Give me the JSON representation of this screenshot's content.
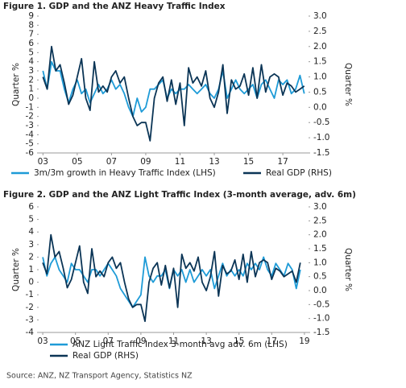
{
  "chart_data": [
    {
      "type": "line",
      "title": "Figure 1. GDP and the ANZ Heavy Traffic Index",
      "ylabel": "Quarter %",
      "y2label": "Quarter %",
      "x": [
        2003,
        2003.25,
        2003.5,
        2003.75,
        2004,
        2004.25,
        2004.5,
        2004.75,
        2005,
        2005.25,
        2005.5,
        2005.75,
        2006,
        2006.25,
        2006.5,
        2006.75,
        2007,
        2007.25,
        2007.5,
        2007.75,
        2008,
        2008.25,
        2008.5,
        2008.75,
        2009,
        2009.25,
        2009.5,
        2009.75,
        2010,
        2010.25,
        2010.5,
        2010.75,
        2011,
        2011.25,
        2011.5,
        2011.75,
        2012,
        2012.25,
        2012.5,
        2012.75,
        2013,
        2013.25,
        2013.5,
        2013.75,
        2014,
        2014.25,
        2014.5,
        2014.75,
        2015,
        2015.25,
        2015.5,
        2015.75,
        2016,
        2016.25,
        2016.5,
        2016.75,
        2017,
        2017.25,
        2017.5,
        2017.75,
        2018,
        2018.25
      ],
      "xlim": [
        2002.75,
        2018.5
      ],
      "xticks": [
        {
          "value": 2003,
          "label": "03"
        },
        {
          "value": 2005,
          "label": "05"
        },
        {
          "value": 2007,
          "label": "07"
        },
        {
          "value": 2009,
          "label": "09"
        },
        {
          "value": 2011,
          "label": "11"
        },
        {
          "value": 2013,
          "label": "13"
        },
        {
          "value": 2015,
          "label": "15"
        },
        {
          "value": 2017,
          "label": "17"
        }
      ],
      "ylim": [
        -6,
        9
      ],
      "yticks": [
        -6,
        -5,
        -4,
        -3,
        -2,
        -1,
        0,
        1,
        2,
        3,
        4,
        5,
        6,
        7,
        8,
        9
      ],
      "y2lim": [
        -1.5,
        3
      ],
      "y2ticks": [
        -1.5,
        {
          "value": -1,
          "label": "-1.0"
        },
        -0.5,
        {
          "value": 0,
          "label": "0.0"
        },
        0.5,
        {
          "value": 1,
          "label": "1.0"
        },
        1.5,
        {
          "value": 2,
          "label": "2.0"
        },
        2.5,
        {
          "value": 3,
          "label": "3.0"
        }
      ],
      "series": [
        {
          "name": "3m/3m growth in Heavy Traffic Index (LHS)",
          "color": "#1e9bd7",
          "values": [
            3,
            1,
            4,
            3,
            3,
            1,
            -0.5,
            1,
            2,
            0.5,
            1,
            -0.5,
            0.5,
            1.5,
            0.5,
            1,
            2,
            1,
            1.5,
            0.5,
            -1,
            -2,
            0,
            -1.5,
            -1,
            1,
            1,
            1.5,
            2,
            0,
            1,
            0.5,
            1,
            1,
            1.5,
            1,
            0.5,
            1,
            1.5,
            0.5,
            0,
            1,
            3,
            0,
            1,
            2,
            1,
            0.5,
            1,
            1.5,
            0,
            1.5,
            2,
            1,
            0,
            2,
            1.5,
            2,
            0.5,
            1,
            2.5,
            0.5
          ]
        },
        {
          "name": "Real GDP (RHS)",
          "color": "#0b3556",
          "axis": "y2",
          "values": [
            1.0,
            0.6,
            2.0,
            1.2,
            1.4,
            0.8,
            0.1,
            0.4,
            1.0,
            1.6,
            0.3,
            -0.1,
            1.5,
            0.5,
            0.7,
            0.5,
            1.0,
            1.2,
            0.8,
            1.0,
            0.3,
            -0.3,
            -0.6,
            -0.5,
            -0.5,
            -1.1,
            0.3,
            0.8,
            1.0,
            0.2,
            0.9,
            0.1,
            0.8,
            -0.6,
            1.3,
            0.8,
            1.0,
            0.7,
            1.2,
            0.3,
            0.0,
            0.5,
            1.4,
            -0.2,
            0.9,
            0.6,
            0.7,
            1.1,
            0.4,
            1.3,
            0.3,
            1.4,
            0.5,
            1.0,
            1.1,
            1.0,
            0.4,
            0.8,
            0.7,
            0.5,
            0.6,
            0.7
          ]
        }
      ]
    },
    {
      "type": "line",
      "title": "Figure 2. GDP and the ANZ Light Traffic Index (3-month average, adv. 6m)",
      "ylabel": "Quarter %",
      "y2label": "Quarter %",
      "x": [
        2003,
        2003.25,
        2003.5,
        2003.75,
        2004,
        2004.25,
        2004.5,
        2004.75,
        2005,
        2005.25,
        2005.5,
        2005.75,
        2006,
        2006.25,
        2006.5,
        2006.75,
        2007,
        2007.25,
        2007.5,
        2007.75,
        2008,
        2008.25,
        2008.5,
        2008.75,
        2009,
        2009.25,
        2009.5,
        2009.75,
        2010,
        2010.25,
        2010.5,
        2010.75,
        2011,
        2011.25,
        2011.5,
        2011.75,
        2012,
        2012.25,
        2012.5,
        2012.75,
        2013,
        2013.25,
        2013.5,
        2013.75,
        2014,
        2014.25,
        2014.5,
        2014.75,
        2015,
        2015.25,
        2015.5,
        2015.75,
        2016,
        2016.25,
        2016.5,
        2016.75,
        2017,
        2017.25,
        2017.5,
        2017.75,
        2018,
        2018.25,
        2018.5,
        2018.75
      ],
      "xlim": [
        2002.75,
        2019.25
      ],
      "xticks": [
        {
          "value": 2003,
          "label": "03"
        },
        {
          "value": 2005,
          "label": "05"
        },
        {
          "value": 2007,
          "label": "07"
        },
        {
          "value": 2009,
          "label": "09"
        },
        {
          "value": 2011,
          "label": "11"
        },
        {
          "value": 2013,
          "label": "13"
        },
        {
          "value": 2015,
          "label": "15"
        },
        {
          "value": 2017,
          "label": "17"
        },
        {
          "value": 2019,
          "label": "19"
        }
      ],
      "ylim": [
        -4,
        6
      ],
      "yticks": [
        -4,
        -3,
        -2,
        -1,
        0,
        1,
        2,
        3,
        4,
        5,
        6
      ],
      "y2lim": [
        -1.5,
        3
      ],
      "y2ticks": [
        -1.5,
        {
          "value": -1,
          "label": "-1.0"
        },
        -0.5,
        {
          "value": 0,
          "label": "0.0"
        },
        0.5,
        {
          "value": 1,
          "label": "1.0"
        },
        1.5,
        {
          "value": 2,
          "label": "2.0"
        },
        2.5,
        {
          "value": 3,
          "label": "3.0"
        }
      ],
      "series": [
        {
          "name": "ANZ Light Traffic Index 3-month avg adv. 6m (LHS)",
          "color": "#1e9bd7",
          "values": [
            2,
            0.5,
            1.5,
            2,
            1,
            0.5,
            0,
            1.5,
            1,
            1,
            0.5,
            0,
            1,
            1,
            0.5,
            1,
            1.5,
            1,
            0.5,
            -0.5,
            -1,
            -1.5,
            -2,
            -1.5,
            -1,
            2,
            0.5,
            0,
            0.5,
            0.5,
            1,
            -0.5,
            1,
            0.5,
            1,
            0,
            1,
            0,
            0.5,
            1,
            0.5,
            1,
            -0.5,
            0.5,
            1.5,
            0.5,
            1,
            0.5,
            1,
            0.5,
            1.5,
            1,
            1.5,
            1,
            2,
            1,
            0.5,
            1.5,
            1,
            0.5,
            1.5,
            1,
            -0.5,
            1
          ]
        },
        {
          "name": "Real GDP (RHS)",
          "color": "#0b3556",
          "axis": "y2",
          "values": [
            1.0,
            0.6,
            2.0,
            1.2,
            1.4,
            0.8,
            0.1,
            0.4,
            1.0,
            1.6,
            0.3,
            -0.1,
            1.5,
            0.5,
            0.7,
            0.5,
            1.0,
            1.2,
            0.8,
            1.0,
            0.3,
            -0.3,
            -0.6,
            -0.5,
            -0.5,
            -1.1,
            0.3,
            0.8,
            1.0,
            0.2,
            0.9,
            0.1,
            0.8,
            -0.6,
            1.3,
            0.8,
            1.0,
            0.7,
            1.2,
            0.3,
            0.0,
            0.5,
            1.4,
            -0.2,
            0.9,
            0.6,
            0.7,
            1.1,
            0.4,
            1.3,
            0.3,
            1.4,
            0.5,
            1.0,
            1.1,
            1.0,
            0.4,
            0.8,
            0.7,
            0.5,
            0.6,
            0.7,
            0.3,
            1.0
          ]
        }
      ]
    }
  ],
  "source": "Source: ANZ, NZ Transport Agency, Statistics NZ"
}
